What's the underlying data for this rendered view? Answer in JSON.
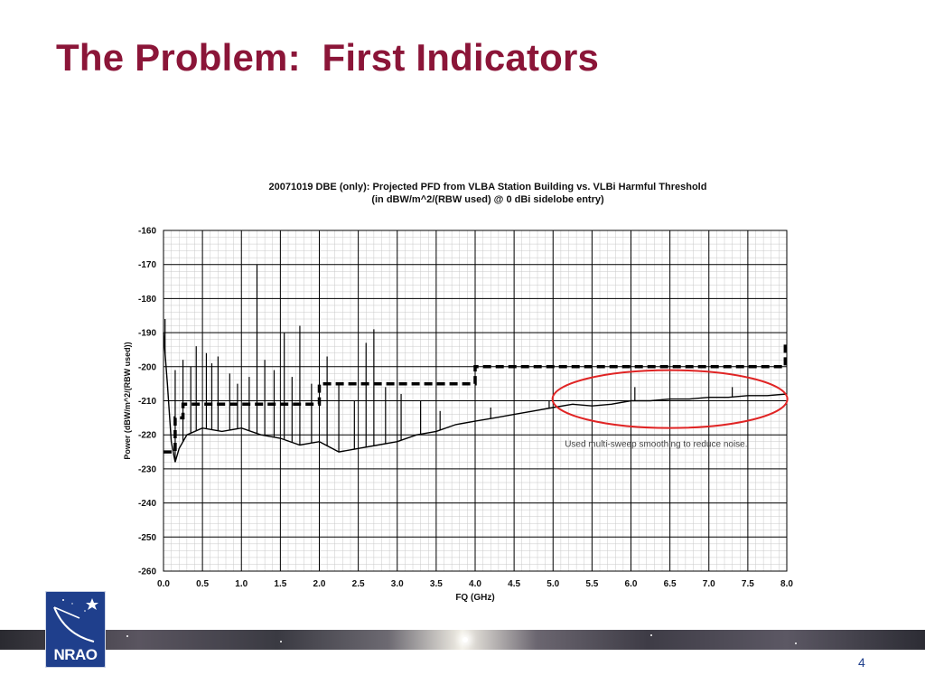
{
  "slide": {
    "title": "The Problem:  First Indicators",
    "page_number": "4",
    "logo_text": "NRAO"
  },
  "chart_data": {
    "type": "line",
    "title": "20071019 DBE (only): Projected PFD from VLBA Station Building vs. VLBi Harmful Threshold",
    "subtitle": "(in dBW/m^2/(RBW used) @ 0 dBi sidelobe entry)",
    "xlabel": "FQ (GHz)",
    "ylabel": "Power (dBW/m^2/(RBW used))",
    "xlim": [
      0.0,
      8.0
    ],
    "ylim": [
      -260,
      -160
    ],
    "x_ticks": [
      "0.0",
      "0.5",
      "1.0",
      "1.5",
      "2.0",
      "2.5",
      "3.0",
      "3.5",
      "4.0",
      "4.5",
      "5.0",
      "5.5",
      "6.0",
      "6.5",
      "7.0",
      "7.5",
      "8.0"
    ],
    "y_ticks": [
      "-160",
      "-170",
      "-180",
      "-190",
      "-200",
      "-210",
      "-220",
      "-230",
      "-240",
      "-250",
      "-260"
    ],
    "grid": true,
    "annotation": "Used multi-sweep smoothing to reduce noise.",
    "series": [
      {
        "style": "solid",
        "color": "#000000",
        "x": [
          0.0,
          0.05,
          0.1,
          0.15,
          0.2,
          0.3,
          0.5,
          0.75,
          1.0,
          1.25,
          1.5,
          1.75,
          2.0,
          2.25,
          2.5,
          2.75,
          3.0,
          3.25,
          3.5,
          3.75,
          4.0,
          4.25,
          4.5,
          4.75,
          5.0,
          5.25,
          5.5,
          5.75,
          6.0,
          6.25,
          6.5,
          6.75,
          7.0,
          7.25,
          7.5,
          7.75,
          8.0
        ],
        "y": [
          -190,
          -205,
          -222,
          -228,
          -224,
          -220,
          -218,
          -219,
          -218,
          -220,
          -221,
          -223,
          -222,
          -225,
          -224,
          -223,
          -222,
          -220,
          -219,
          -217,
          -216,
          -215,
          -214,
          -213,
          -212,
          -211,
          -211.5,
          -211,
          -210,
          -210,
          -209.5,
          -209.5,
          -209,
          -209,
          -208.5,
          -208.5,
          -208
        ]
      },
      {
        "style": "dashed",
        "color": "#000000",
        "x": [
          0.0,
          0.15,
          0.15,
          0.25,
          0.25,
          2.0,
          2.0,
          4.0,
          4.0,
          7.98,
          7.98
        ],
        "y": [
          -225,
          -225,
          -215,
          -215,
          -211,
          -211,
          -205,
          -205,
          -200,
          -200,
          -193
        ]
      }
    ],
    "spikes": [
      {
        "x": 0.02,
        "y": -186
      },
      {
        "x": 0.15,
        "y": -201
      },
      {
        "x": 0.25,
        "y": -198
      },
      {
        "x": 0.35,
        "y": -200
      },
      {
        "x": 0.42,
        "y": -194
      },
      {
        "x": 0.55,
        "y": -196
      },
      {
        "x": 0.62,
        "y": -199
      },
      {
        "x": 0.7,
        "y": -197
      },
      {
        "x": 0.85,
        "y": -202
      },
      {
        "x": 0.95,
        "y": -205
      },
      {
        "x": 1.1,
        "y": -203
      },
      {
        "x": 1.2,
        "y": -170
      },
      {
        "x": 1.3,
        "y": -198
      },
      {
        "x": 1.42,
        "y": -201
      },
      {
        "x": 1.55,
        "y": -190
      },
      {
        "x": 1.65,
        "y": -203
      },
      {
        "x": 1.75,
        "y": -188
      },
      {
        "x": 1.9,
        "y": -205
      },
      {
        "x": 2.1,
        "y": -197
      },
      {
        "x": 2.25,
        "y": -205
      },
      {
        "x": 2.45,
        "y": -210
      },
      {
        "x": 2.6,
        "y": -193
      },
      {
        "x": 2.7,
        "y": -189
      },
      {
        "x": 2.85,
        "y": -206
      },
      {
        "x": 3.05,
        "y": -208
      },
      {
        "x": 3.3,
        "y": -210
      },
      {
        "x": 3.55,
        "y": -213
      },
      {
        "x": 4.2,
        "y": -212
      },
      {
        "x": 4.95,
        "y": -210
      },
      {
        "x": 6.05,
        "y": -206
      },
      {
        "x": 7.3,
        "y": -206
      }
    ]
  }
}
